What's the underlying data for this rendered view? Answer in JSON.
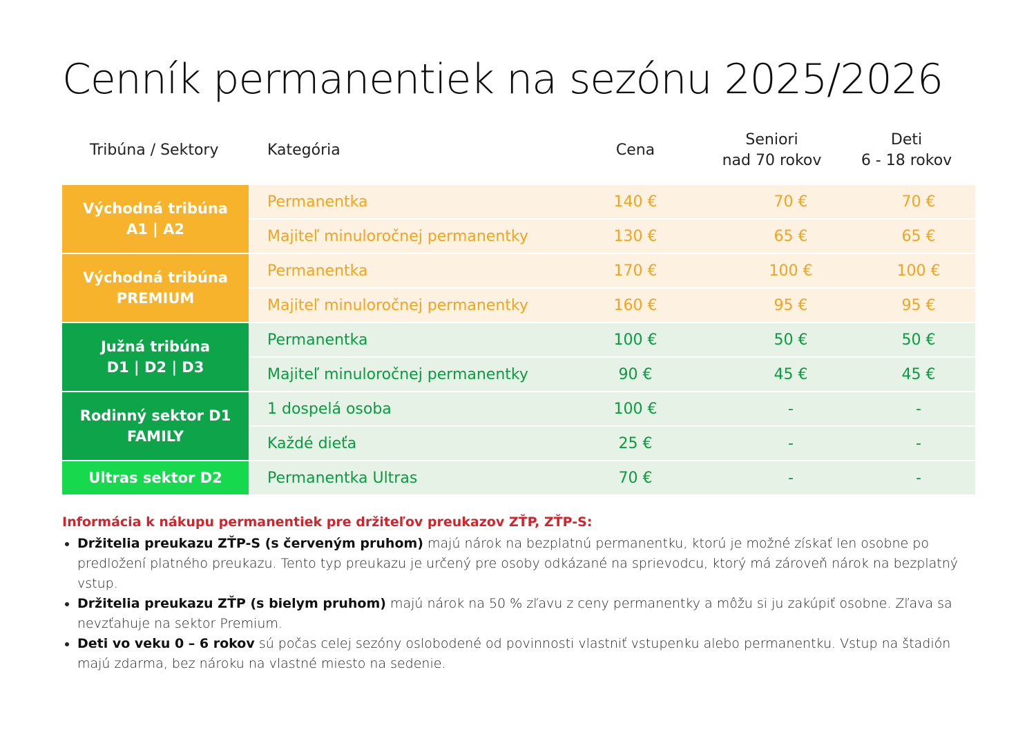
{
  "title": "Cenník permanentiek na sezónu 2025/2026",
  "headers": {
    "tribune": "Tribúna / Sektory",
    "category": "Kategória",
    "price": "Cena",
    "seniors_line1": "Seniori",
    "seniors_line2": "nad 70 rokov",
    "kids_line1": "Deti",
    "kids_line2": "6 - 18 rokov"
  },
  "groups": [
    {
      "label_line1": "Východná tribúna",
      "label_line2": "A1 | A2",
      "color": "#f7b32b",
      "rows": [
        {
          "category": "Permanentka",
          "price": "140 €",
          "seniors": "70 €",
          "kids": "70 €"
        },
        {
          "category": "Majiteľ minuloročnej permanentky",
          "price": "130 €",
          "seniors": "65 €",
          "kids": "65 €"
        }
      ]
    },
    {
      "label_line1": "Východná tribúna",
      "label_line2": "PREMIUM",
      "color": "#f7b32b",
      "rows": [
        {
          "category": "Permanentka",
          "price": "170 €",
          "seniors": "100 €",
          "kids": "100 €"
        },
        {
          "category": "Majiteľ minuloročnej permanentky",
          "price": "160 €",
          "seniors": "95 €",
          "kids": "95 €"
        }
      ]
    },
    {
      "label_line1": "Južná tribúna",
      "label_line2": "D1 | D2 | D3",
      "color": "#0ea44a",
      "rows": [
        {
          "category": "Permanentka",
          "price": "100 €",
          "seniors": "50 €",
          "kids": "50 €"
        },
        {
          "category": "Majiteľ minuloročnej permanentky",
          "price": "90 €",
          "seniors": "45 €",
          "kids": "45 €"
        }
      ]
    },
    {
      "label_line1": "Rodinný sektor D1",
      "label_line2": "FAMILY",
      "color": "#0ea44a",
      "rows": [
        {
          "category": "1 dospelá osoba",
          "price": "100 €",
          "seniors": "-",
          "kids": "-"
        },
        {
          "category": "Každé dieťa",
          "price": "25 €",
          "seniors": "-",
          "kids": "-"
        }
      ]
    },
    {
      "label_line1": "Ultras sektor D2",
      "label_line2": "",
      "color": "#17d94e",
      "rows": [
        {
          "category": "Permanentka Ultras",
          "price": "70 €",
          "seniors": "-",
          "kids": "-"
        }
      ]
    }
  ],
  "info": {
    "title": "Informácia k nákupu permanentiek pre držiteľov preukazov ZŤP, ZŤP-S:",
    "items": [
      {
        "bold": "Držitelia preukazu ZŤP-S (s červeným pruhom)",
        "text": " majú nárok na bezplatnú permanentku, ktorú je možné získať len osobne po predložení platného preukazu. Tento typ preukazu je určený pre osoby odkázané na sprievodcu, ktorý má zároveň nárok na bezplatný vstup."
      },
      {
        "bold": "Držitelia preukazu ZŤP (s bielym pruhom)",
        "text": " majú nárok na 50 % zľavu z ceny permanentky a môžu si ju zakúpiť osobne. Zľava sa nevzťahuje na sektor Premium."
      },
      {
        "bold": "Deti vo veku 0 – 6 rokov",
        "text": " sú počas celej sezóny oslobodené od povinnosti vlastniť vstupenku alebo permanentku. Vstup na štadión majú zdarma, bez nároku na vlastné miesto na sedenie."
      }
    ]
  }
}
